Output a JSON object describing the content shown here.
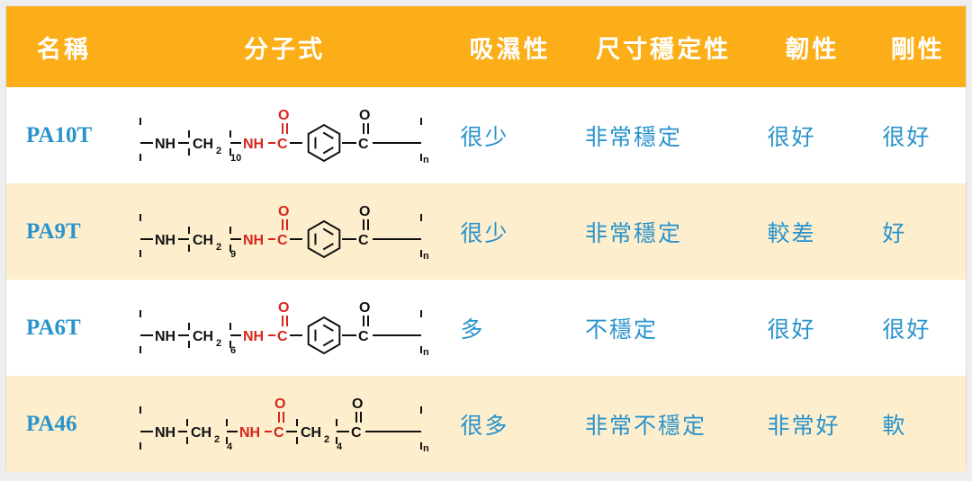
{
  "colors": {
    "header_bg": "#fbae17",
    "header_text": "#ffffff",
    "row_even_bg": "#ffffff",
    "row_odd_bg": "#fdeecd",
    "name_text": "#2993cc",
    "prop_text": "#2993cc",
    "mol_black": "#111111",
    "mol_red": "#d7261c"
  },
  "columns": [
    {
      "key": "name",
      "label": "名稱"
    },
    {
      "key": "molecule",
      "label": "分子式"
    },
    {
      "key": "hygroscopicity",
      "label": "吸濕性"
    },
    {
      "key": "dim_stability",
      "label": "尺寸穩定性"
    },
    {
      "key": "toughness",
      "label": "韌性"
    },
    {
      "key": "rigidity",
      "label": "剛性"
    }
  ],
  "rows": [
    {
      "name": "PA10T",
      "molecule": {
        "type": "aromatic",
        "ch2_sub": "10"
      },
      "hygroscopicity": "很少",
      "dim_stability": "非常穩定",
      "toughness": "很好",
      "rigidity": "很好"
    },
    {
      "name": "PA9T",
      "molecule": {
        "type": "aromatic",
        "ch2_sub": "9"
      },
      "hygroscopicity": "很少",
      "dim_stability": "非常穩定",
      "toughness": "較差",
      "rigidity": "好"
    },
    {
      "name": "PA6T",
      "molecule": {
        "type": "aromatic",
        "ch2_sub": "6"
      },
      "hygroscopicity": "多",
      "dim_stability": "不穩定",
      "toughness": "很好",
      "rigidity": "很好"
    },
    {
      "name": "PA46",
      "molecule": {
        "type": "aliphatic",
        "ch2_sub1": "4",
        "ch2_sub2": "4"
      },
      "hygroscopicity": "很多",
      "dim_stability": "非常不穩定",
      "toughness": "非常好",
      "rigidity": "軟"
    }
  ]
}
